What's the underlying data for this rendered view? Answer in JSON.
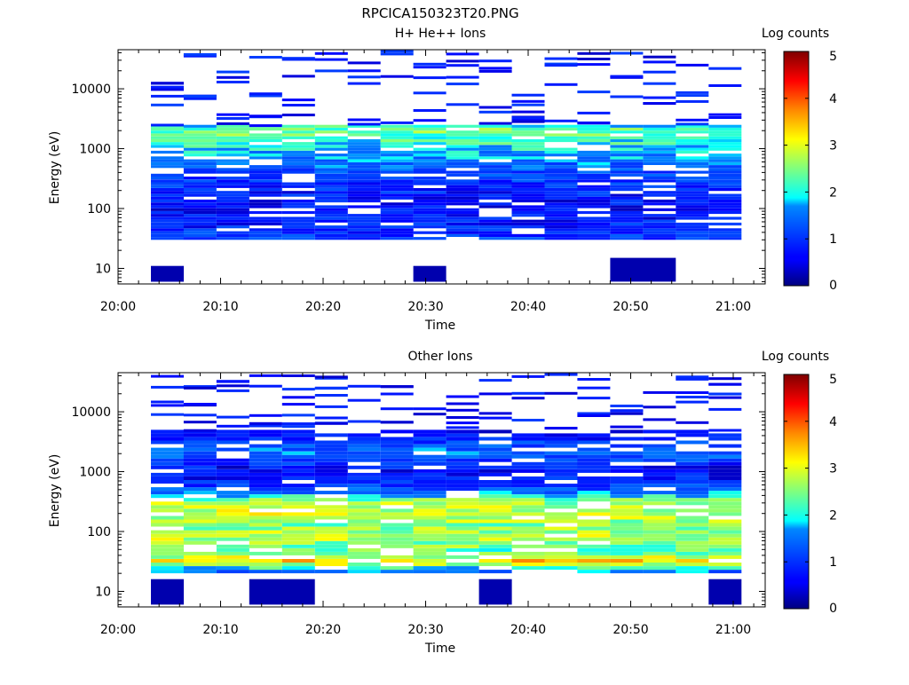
{
  "figure": {
    "title": "RPCICA150323T20.PNG"
  },
  "chart_data": [
    {
      "type": "heatmap",
      "title": "H+ He++ Ions",
      "xlabel": "Time",
      "ylabel": "Energy (eV)",
      "x_ticks": [
        "20:00",
        "20:10",
        "20:20",
        "20:30",
        "20:40",
        "20:50",
        "21:00"
      ],
      "x_range_minutes": [
        0,
        63
      ],
      "y_scale": "log",
      "y_ticks": [
        "10",
        "100",
        "1000",
        "10000"
      ],
      "y_range": [
        5.5,
        45000
      ],
      "colorbar_label": "Log counts",
      "colorbar_ticks": [
        "0",
        "1",
        "2",
        "3",
        "4",
        "5"
      ],
      "value_range": [
        0,
        5
      ],
      "colormap": "jet",
      "time_bins_start_minutes": [
        3.2,
        6.4,
        9.6,
        12.8,
        16.0,
        19.2,
        22.4,
        25.6,
        28.8,
        32.0,
        35.2,
        38.4,
        41.6,
        44.8,
        48.0,
        51.2,
        54.4,
        57.6
      ],
      "time_bin_width_minutes": 3.2,
      "energy_range_eV": [
        30,
        2500
      ],
      "summary_profile_log10E": [
        [
          1.5,
          1.0
        ],
        [
          2.0,
          0.6
        ],
        [
          2.5,
          1.0
        ],
        [
          2.9,
          1.7
        ],
        [
          3.3,
          2.5
        ],
        [
          3.6,
          0.9
        ],
        [
          4.0,
          0.4
        ],
        [
          4.6,
          0.3
        ]
      ],
      "low_energy_patches": [
        {
          "time_start_minutes": 3.2,
          "time_end_minutes": 6.4,
          "energy_eV": [
            6,
            11
          ],
          "log_counts": 0.2
        },
        {
          "time_start_minutes": 28.8,
          "time_end_minutes": 32.0,
          "energy_eV": [
            6,
            11
          ],
          "log_counts": 0.2
        },
        {
          "time_start_minutes": 48.0,
          "time_end_minutes": 54.4,
          "energy_eV": [
            6,
            15
          ],
          "log_counts": 0.2
        }
      ]
    },
    {
      "type": "heatmap",
      "title": "Other Ions",
      "xlabel": "Time",
      "ylabel": "Energy (eV)",
      "x_ticks": [
        "20:00",
        "20:10",
        "20:20",
        "20:30",
        "20:40",
        "20:50",
        "21:00"
      ],
      "x_range_minutes": [
        0,
        63
      ],
      "y_scale": "log",
      "y_ticks": [
        "10",
        "100",
        "1000",
        "10000"
      ],
      "y_range": [
        5.5,
        45000
      ],
      "colorbar_label": "Log counts",
      "colorbar_ticks": [
        "0",
        "1",
        "2",
        "3",
        "4",
        "5"
      ],
      "value_range": [
        0,
        5
      ],
      "colormap": "jet",
      "time_bins_start_minutes": [
        3.2,
        6.4,
        9.6,
        12.8,
        16.0,
        19.2,
        22.4,
        25.6,
        28.8,
        32.0,
        35.2,
        38.4,
        41.6,
        44.8,
        48.0,
        51.2,
        54.4,
        57.6
      ],
      "time_bin_width_minutes": 3.2,
      "energy_range_eV": [
        20,
        5000
      ],
      "summary_profile_log10E": [
        [
          1.35,
          1.5
        ],
        [
          1.5,
          3.4
        ],
        [
          1.65,
          2.2
        ],
        [
          1.9,
          2.8
        ],
        [
          2.1,
          2.5
        ],
        [
          2.3,
          2.9
        ],
        [
          2.5,
          2.6
        ],
        [
          2.7,
          1.2
        ],
        [
          3.0,
          0.5
        ],
        [
          3.35,
          1.5
        ],
        [
          3.7,
          0.3
        ]
      ],
      "low_energy_patches": [
        {
          "time_start_minutes": 3.2,
          "time_end_minutes": 6.4,
          "energy_eV": [
            6,
            16
          ],
          "log_counts": 0.2
        },
        {
          "time_start_minutes": 12.8,
          "time_end_minutes": 19.2,
          "energy_eV": [
            6,
            16
          ],
          "log_counts": 0.2
        },
        {
          "time_start_minutes": 35.2,
          "time_end_minutes": 38.4,
          "energy_eV": [
            6,
            16
          ],
          "log_counts": 0.2
        },
        {
          "time_start_minutes": 57.6,
          "time_end_minutes": 60.8,
          "energy_eV": [
            6,
            16
          ],
          "log_counts": 0.2
        }
      ]
    }
  ]
}
